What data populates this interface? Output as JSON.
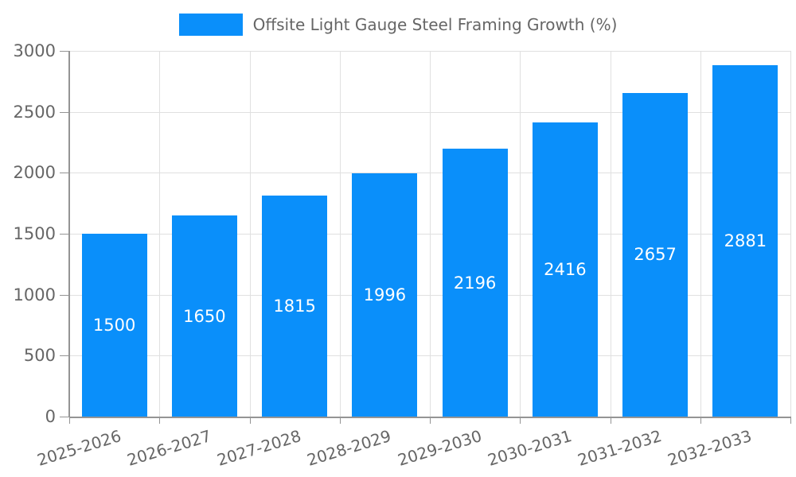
{
  "chart_data": {
    "type": "bar",
    "title": "",
    "series_label": "Offsite Light Gauge Steel Framing Growth (%)",
    "categories": [
      "2025-2026",
      "2026-2027",
      "2027-2028",
      "2028-2029",
      "2029-2030",
      "2030-2031",
      "2031-2032",
      "2032-2033"
    ],
    "values": [
      1500,
      1650,
      1815,
      1996,
      2196,
      2416,
      2657,
      2881
    ],
    "bar_value_labels": [
      "1500",
      "1650",
      "1815",
      "1996",
      "2196",
      "2416",
      "2657",
      "2881"
    ],
    "xlabel": "",
    "ylabel": "",
    "ylim": [
      0,
      3000
    ],
    "yticks": [
      0,
      500,
      1000,
      1500,
      2000,
      2500,
      3000
    ],
    "ytick_labels": [
      "0",
      "500",
      "1000",
      "1500",
      "2000",
      "2500",
      "3000"
    ],
    "grid": true,
    "legend_position": "top-center",
    "x_label_rotation_deg": -17,
    "colors": {
      "bar": "#0A8FFA",
      "grid": "#E0E0E0",
      "axis": "#949494",
      "tick_text": "#666666",
      "value_text": "#FFFFFF",
      "background": "#FFFFFF"
    }
  }
}
